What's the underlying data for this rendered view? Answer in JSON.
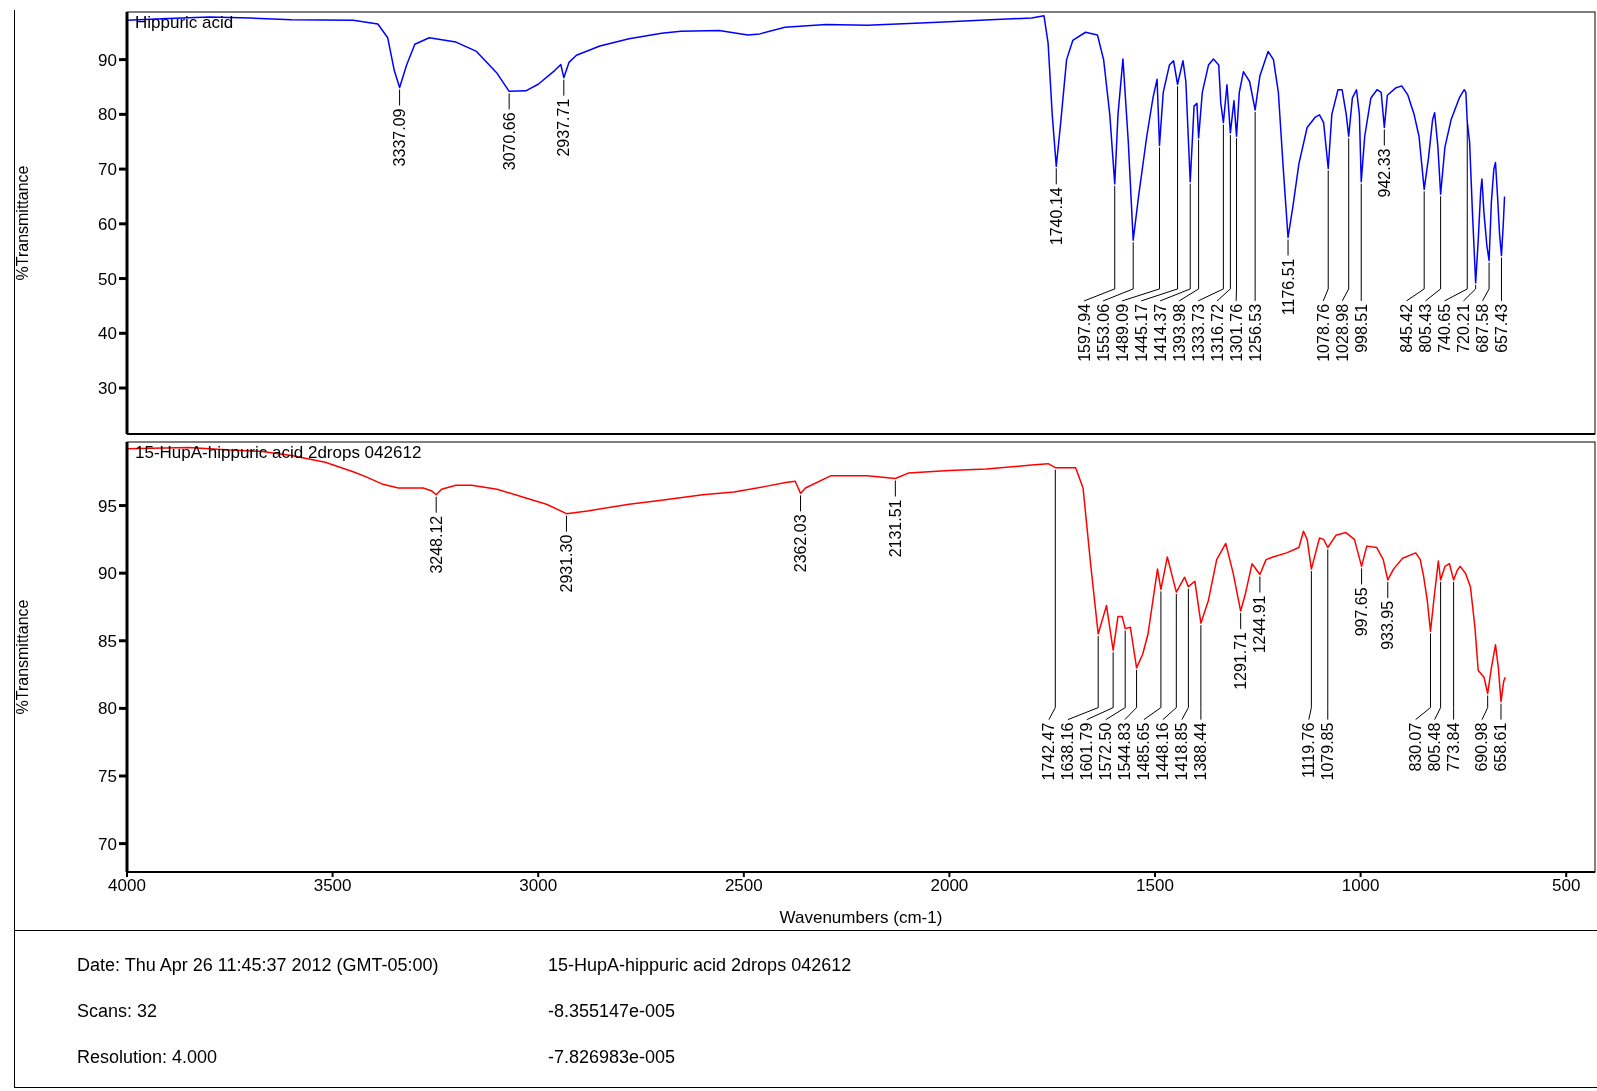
{
  "chart_data": [
    {
      "type": "line",
      "title": "Hippuric acid",
      "ylabel": "%Transmittance",
      "xlim": [
        4000,
        430
      ],
      "ylim": [
        21.6,
        98.7
      ],
      "xticks": [
        4000,
        3500,
        3000,
        2500,
        2000,
        1500,
        1000,
        500
      ],
      "yticks": [
        30,
        40,
        50,
        60,
        70,
        80,
        90
      ],
      "tick_labels": "y",
      "series": [
        {
          "color": "#0000ff",
          "x": [
            4000,
            3900,
            3800,
            3700,
            3600,
            3450,
            3390,
            3366,
            3350,
            3337.09,
            3320,
            3300,
            3265,
            3200,
            3150,
            3100,
            3070.66,
            3030,
            3000,
            2960,
            2945,
            2937.71,
            2925,
            2907,
            2850,
            2779,
            2700,
            2653,
            2560,
            2490,
            2461,
            2400,
            2300,
            2200,
            2098,
            2000,
            1900,
            1800,
            1770,
            1760,
            1750,
            1740.14,
            1730,
            1715,
            1700,
            1669,
            1640,
            1625,
            1610,
            1597.94,
            1590,
            1578,
            1565,
            1553.06,
            1540,
            1520,
            1505,
            1495,
            1489.09,
            1480,
            1465,
            1455,
            1445.17,
            1432,
            1425,
            1414.37,
            1405,
            1398,
            1393.98,
            1385,
            1370,
            1358,
            1345,
            1340,
            1333.73,
            1325,
            1316.72,
            1308,
            1301.76,
            1295,
            1285,
            1270,
            1256.53,
            1245,
            1225,
            1212,
            1200,
            1188,
            1176.51,
            1165,
            1150,
            1130,
            1110,
            1100,
            1090,
            1078.76,
            1070,
            1055,
            1045,
            1035,
            1028.98,
            1020,
            1010,
            1003,
            998.51,
            990,
            975,
            960,
            950,
            942.33,
            935,
            915,
            900,
            885,
            870,
            858,
            845.42,
            835,
            825,
            820,
            812,
            805.43,
            795,
            780,
            760,
            748,
            744,
            740.65,
            735,
            728,
            720.21,
            714,
            708,
            705,
            700,
            693,
            687.58,
            682,
            676,
            672,
            667,
            662,
            657.43,
            653,
            650
          ],
          "values": [
            97.2,
            97.5,
            97.8,
            97.6,
            97.3,
            97.2,
            96.5,
            94,
            88,
            84.9,
            89,
            92.8,
            94,
            93.2,
            91.5,
            87.5,
            84.2,
            84.3,
            85.5,
            88,
            89.1,
            86.7,
            89.5,
            90.8,
            92.5,
            93.8,
            94.8,
            95.2,
            95.3,
            94.5,
            94.7,
            95.9,
            96.4,
            96.3,
            96.6,
            96.9,
            97.3,
            97.6,
            98,
            93,
            80,
            70.5,
            78,
            90,
            93.5,
            95,
            94.5,
            90,
            80,
            67.3,
            80,
            90.1,
            75,
            57,
            65,
            76,
            83,
            86.4,
            74.3,
            84,
            89,
            89.8,
            85.5,
            89.8,
            86,
            67.7,
            81.5,
            82,
            75.7,
            84,
            89,
            90.1,
            89,
            82,
            78.5,
            85.4,
            76.6,
            82.5,
            76,
            84,
            87.8,
            86,
            80.8,
            87,
            91.5,
            90,
            84,
            70,
            57.5,
            63,
            71,
            77.6,
            79.5,
            79.9,
            78.5,
            70.1,
            80,
            84.5,
            84.5,
            80,
            76,
            83,
            84.5,
            80,
            67.7,
            76,
            83,
            84.5,
            84,
            77.6,
            83.5,
            84.8,
            85.2,
            83.5,
            80,
            76,
            66.3,
            72,
            79,
            80.3,
            74,
            65.4,
            74,
            79,
            83,
            84.5,
            84,
            78.6,
            75,
            62,
            49.2,
            57,
            66,
            68.2,
            62,
            56,
            53.3,
            64,
            70,
            71.2,
            65,
            58,
            54.2,
            60,
            65
          ]
        }
      ],
      "annotations": [
        {
          "text": "3337.09",
          "x": 3337.09,
          "y": 84.9
        },
        {
          "text": "3070.66",
          "x": 3070.66,
          "y": 84.2
        },
        {
          "text": "2937.71",
          "x": 2937.71,
          "y": 86.7
        },
        {
          "text": "1740.14",
          "x": 1740.14,
          "y": 70.5
        },
        {
          "text": "1597.94",
          "x": 1597.94,
          "y": 67.3
        },
        {
          "text": "1553.06",
          "x": 1553.06,
          "y": 57
        },
        {
          "text": "1489.09",
          "x": 1489.09,
          "y": 74.3
        },
        {
          "text": "1445.17",
          "x": 1445.17,
          "y": 85.5
        },
        {
          "text": "1414.37",
          "x": 1414.37,
          "y": 67.7
        },
        {
          "text": "1393.98",
          "x": 1393.98,
          "y": 75.7
        },
        {
          "text": "1333.73",
          "x": 1333.73,
          "y": 78.5
        },
        {
          "text": "1316.72",
          "x": 1316.72,
          "y": 76.6
        },
        {
          "text": "1301.76",
          "x": 1301.76,
          "y": 76
        },
        {
          "text": "1256.53",
          "x": 1256.53,
          "y": 80.8
        },
        {
          "text": "1176.51",
          "x": 1176.51,
          "y": 57.5
        },
        {
          "text": "1078.76",
          "x": 1078.76,
          "y": 70.1
        },
        {
          "text": "1028.98",
          "x": 1028.98,
          "y": 76
        },
        {
          "text": "998.51",
          "x": 998.51,
          "y": 67.7
        },
        {
          "text": "942.33",
          "x": 942.33,
          "y": 77.6
        },
        {
          "text": "845.42",
          "x": 845.42,
          "y": 66.3
        },
        {
          "text": "805.43",
          "x": 805.43,
          "y": 65.4
        },
        {
          "text": "740.65",
          "x": 740.65,
          "y": 78.6
        },
        {
          "text": "720.21",
          "x": 720.21,
          "y": 49.2
        },
        {
          "text": "687.58",
          "x": 687.58,
          "y": 53.3
        },
        {
          "text": "657.43",
          "x": 657.43,
          "y": 54.2
        }
      ]
    },
    {
      "type": "line",
      "title": "15-HupA-hippuric acid 2drops 042612",
      "xlabel": "Wavenumbers (cm-1)",
      "ylabel": "%Transmittance",
      "xlim": [
        4000,
        430
      ],
      "ylim": [
        67.9,
        99.7
      ],
      "xticks": [
        4000,
        3500,
        3000,
        2500,
        2000,
        1500,
        1000,
        500
      ],
      "yticks": [
        70,
        75,
        80,
        85,
        90,
        95
      ],
      "series": [
        {
          "color": "#ff0000",
          "x": [
            4000,
            3850,
            3750,
            3671,
            3600,
            3518,
            3450,
            3417,
            3380,
            3340,
            3280,
            3260,
            3248.12,
            3235,
            3200,
            3162,
            3100,
            3034,
            2980,
            2931.3,
            2880,
            2779,
            2700,
            2600,
            2524,
            2450,
            2398,
            2375,
            2362.03,
            2350,
            2289,
            2200,
            2131.51,
            2100,
            2000,
            1910,
            1800,
            1760,
            1742.47,
            1693,
            1675,
            1656,
            1638.16,
            1618,
            1601.79,
            1590,
            1580,
            1572.5,
            1560,
            1544.83,
            1530,
            1517,
            1494,
            1485.65,
            1470,
            1460,
            1448.16,
            1428,
            1418.85,
            1403,
            1388.44,
            1370,
            1350,
            1328,
            1310,
            1291.71,
            1280,
            1264,
            1244.91,
            1230,
            1213,
            1180,
            1150,
            1139,
            1130,
            1119.76,
            1100,
            1090,
            1079.85,
            1060,
            1036,
            1015,
            997.65,
            985,
            961,
            945,
            933.95,
            920,
            898,
            866,
            855,
            847,
            838,
            830.07,
            822,
            811,
            805.48,
            795,
            784,
            773.84,
            765,
            758,
            745,
            733,
            722,
            714,
            700,
            690.98,
            682,
            672,
            665,
            658.61,
            652,
            648
          ],
          "values": [
            99.2,
            99.3,
            99.1,
            99,
            98.7,
            98.2,
            97.5,
            97.1,
            96.6,
            96.3,
            96.3,
            96.1,
            95.8,
            96.2,
            96.5,
            96.5,
            96.2,
            95.6,
            95.1,
            94.4,
            94.6,
            95.1,
            95.4,
            95.8,
            96,
            96.4,
            96.7,
            96.8,
            95.9,
            96.3,
            97.2,
            97.2,
            97,
            97.4,
            97.6,
            97.7,
            98,
            98.1,
            97.8,
            97.8,
            96.3,
            90.5,
            85.5,
            87.6,
            84.3,
            86.8,
            86.8,
            85.9,
            86,
            83,
            84,
            85.5,
            90.3,
            88.8,
            91.2,
            90,
            88.6,
            89.7,
            89,
            89.4,
            86.3,
            88,
            91,
            92.2,
            90,
            87.2,
            88.5,
            90.7,
            89.9,
            91,
            91.2,
            91.5,
            91.9,
            93.1,
            92.5,
            90.3,
            92.6,
            92.5,
            91.9,
            92.8,
            93,
            92.5,
            90.5,
            92,
            91.9,
            91,
            89.5,
            90.3,
            91.1,
            91.5,
            91,
            89.8,
            88,
            85.7,
            88,
            90.9,
            89.5,
            90.5,
            90.7,
            89.5,
            90.2,
            90.5,
            90,
            89,
            86,
            82.8,
            82.3,
            81.1,
            83,
            84.7,
            83,
            80.5,
            82,
            82.3
          ]
        }
      ],
      "annotations": [
        {
          "text": "3248.12",
          "x": 3248.12,
          "y": 95.8
        },
        {
          "text": "2931.30",
          "x": 2931.3,
          "y": 94.4
        },
        {
          "text": "2362.03",
          "x": 2362.03,
          "y": 95.9
        },
        {
          "text": "2131.51",
          "x": 2131.51,
          "y": 97
        },
        {
          "text": "1742.47",
          "x": 1742.47,
          "y": 97.8
        },
        {
          "text": "1638.16",
          "x": 1638.16,
          "y": 85.5
        },
        {
          "text": "1601.79",
          "x": 1601.79,
          "y": 84.3
        },
        {
          "text": "1572.50",
          "x": 1572.5,
          "y": 85.9
        },
        {
          "text": "1544.83",
          "x": 1544.83,
          "y": 83
        },
        {
          "text": "1485.65",
          "x": 1485.65,
          "y": 88.8
        },
        {
          "text": "1448.16",
          "x": 1448.16,
          "y": 88.6
        },
        {
          "text": "1418.85",
          "x": 1418.85,
          "y": 89
        },
        {
          "text": "1388.44",
          "x": 1388.44,
          "y": 86.3
        },
        {
          "text": "1291.71",
          "x": 1291.71,
          "y": 87.2
        },
        {
          "text": "1244.91",
          "x": 1244.91,
          "y": 89.9
        },
        {
          "text": "1119.76",
          "x": 1119.76,
          "y": 90.3
        },
        {
          "text": "1079.85",
          "x": 1079.85,
          "y": 91.9
        },
        {
          "text": "997.65",
          "x": 997.65,
          "y": 90.5
        },
        {
          "text": "933.95",
          "x": 933.95,
          "y": 89.5
        },
        {
          "text": "830.07",
          "x": 830.07,
          "y": 85.7
        },
        {
          "text": "805.48",
          "x": 805.48,
          "y": 89.5
        },
        {
          "text": "773.84",
          "x": 773.84,
          "y": 89.5
        },
        {
          "text": "690.98",
          "x": 690.98,
          "y": 81.1
        },
        {
          "text": "658.61",
          "x": 658.61,
          "y": 80.5
        },
        "Date: Thu Apr 26 11:45:37 2012 (GMT-05:00)",
        "15-HupA-hippuric acid 2drops 042612",
        "Scans: 32",
        "-8.355147e-005",
        "Resolution:  4.000",
        "-7.826983e-005"
      ]
    }
  ]
}
